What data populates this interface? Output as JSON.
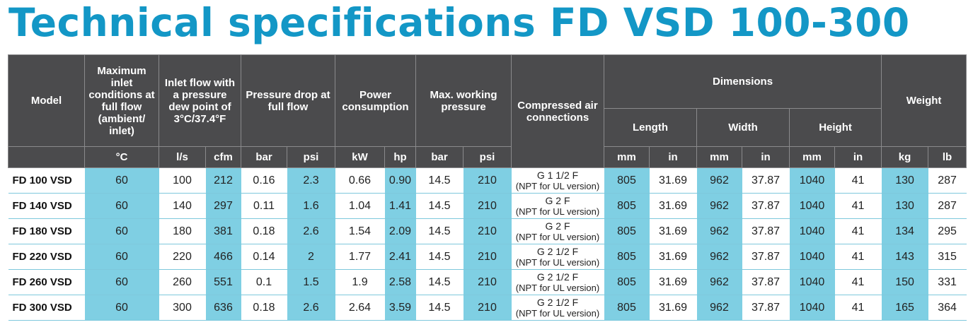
{
  "title": "Technical specifications FD VSD 100-300",
  "headers": {
    "model": "Model",
    "max_inlet": "Maximum inlet conditions at full flow (ambient/ inlet)",
    "inlet_flow": "Inlet flow with a pressure dew point of 3°C/37.4°F",
    "pressure_drop": "Pressure drop at full flow",
    "power": "Power consumption",
    "max_pressure": "Max. working pressure",
    "connections": "Compressed air connections",
    "dimensions": "Dimensions",
    "length": "Length",
    "width": "Width",
    "height": "Height",
    "weight": "Weight"
  },
  "units": [
    "°C",
    "l/s",
    "cfm",
    "bar",
    "psi",
    "kW",
    "hp",
    "bar",
    "psi",
    "mm",
    "in",
    "mm",
    "in",
    "mm",
    "in",
    "kg",
    "lb"
  ],
  "rows": [
    {
      "model": "FD 100 VSD",
      "temp": "60",
      "ls": "100",
      "cfm": "212",
      "drop_bar": "0.16",
      "drop_psi": "2.3",
      "kw": "0.66",
      "hp": "0.90",
      "wp_bar": "14.5",
      "wp_psi": "210",
      "conn1": "G 1 1/2 F",
      "conn2": "(NPT for UL version)",
      "len_mm": "805",
      "len_in": "31.69",
      "wid_mm": "962",
      "wid_in": "37.87",
      "hgt_mm": "1040",
      "hgt_in": "41",
      "kg": "130",
      "lb": "287"
    },
    {
      "model": "FD 140 VSD",
      "temp": "60",
      "ls": "140",
      "cfm": "297",
      "drop_bar": "0.11",
      "drop_psi": "1.6",
      "kw": "1.04",
      "hp": "1.41",
      "wp_bar": "14.5",
      "wp_psi": "210",
      "conn1": "G 2 F",
      "conn2": "(NPT for UL version)",
      "len_mm": "805",
      "len_in": "31.69",
      "wid_mm": "962",
      "wid_in": "37.87",
      "hgt_mm": "1040",
      "hgt_in": "41",
      "kg": "130",
      "lb": "287"
    },
    {
      "model": "FD 180 VSD",
      "temp": "60",
      "ls": "180",
      "cfm": "381",
      "drop_bar": "0.18",
      "drop_psi": "2.6",
      "kw": "1.54",
      "hp": "2.09",
      "wp_bar": "14.5",
      "wp_psi": "210",
      "conn1": "G 2 F",
      "conn2": "(NPT for UL version)",
      "len_mm": "805",
      "len_in": "31.69",
      "wid_mm": "962",
      "wid_in": "37.87",
      "hgt_mm": "1040",
      "hgt_in": "41",
      "kg": "134",
      "lb": "295"
    },
    {
      "model": "FD 220 VSD",
      "temp": "60",
      "ls": "220",
      "cfm": "466",
      "drop_bar": "0.14",
      "drop_psi": "2",
      "kw": "1.77",
      "hp": "2.41",
      "wp_bar": "14.5",
      "wp_psi": "210",
      "conn1": "G 2 1/2 F",
      "conn2": "(NPT for UL version)",
      "len_mm": "805",
      "len_in": "31.69",
      "wid_mm": "962",
      "wid_in": "37.87",
      "hgt_mm": "1040",
      "hgt_in": "41",
      "kg": "143",
      "lb": "315"
    },
    {
      "model": "FD 260 VSD",
      "temp": "60",
      "ls": "260",
      "cfm": "551",
      "drop_bar": "0.1",
      "drop_psi": "1.5",
      "kw": "1.9",
      "hp": "2.58",
      "wp_bar": "14.5",
      "wp_psi": "210",
      "conn1": "G 2 1/2 F",
      "conn2": "(NPT for UL version)",
      "len_mm": "805",
      "len_in": "31.69",
      "wid_mm": "962",
      "wid_in": "37.87",
      "hgt_mm": "1040",
      "hgt_in": "41",
      "kg": "150",
      "lb": "331"
    },
    {
      "model": "FD 300 VSD",
      "temp": "60",
      "ls": "300",
      "cfm": "636",
      "drop_bar": "0.18",
      "drop_psi": "2.6",
      "kw": "2.64",
      "hp": "3.59",
      "wp_bar": "14.5",
      "wp_psi": "210",
      "conn1": "G 2 1/2 F",
      "conn2": "(NPT for UL version)",
      "len_mm": "805",
      "len_in": "31.69",
      "wid_mm": "962",
      "wid_in": "37.87",
      "hgt_mm": "1040",
      "hgt_in": "41",
      "kg": "165",
      "lb": "364"
    }
  ]
}
